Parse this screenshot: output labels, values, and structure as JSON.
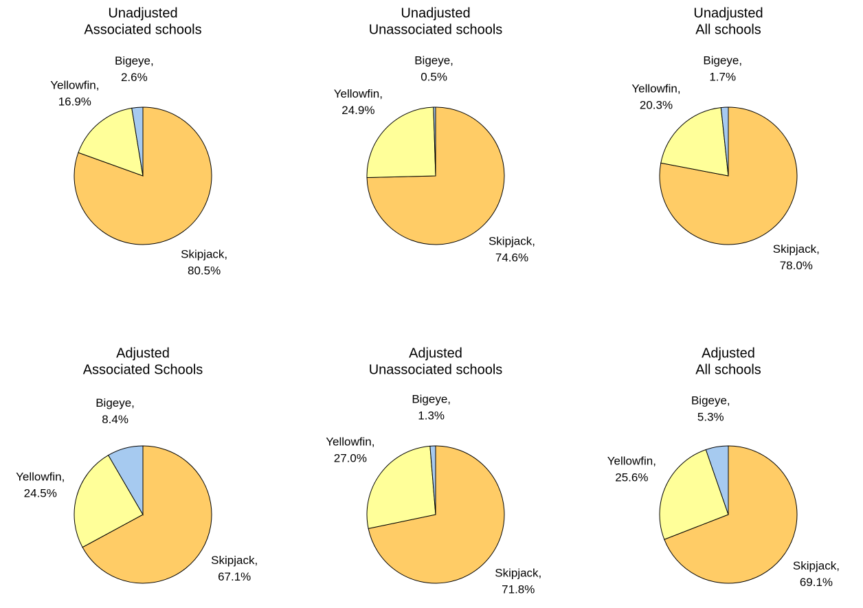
{
  "chart_data": [
    {
      "type": "pie",
      "title": [
        "Unadjusted",
        "Associated schools"
      ],
      "categories": [
        "Skipjack,",
        "Yellowfin,",
        "Bigeye,"
      ],
      "values": [
        80.5,
        16.9,
        2.6
      ],
      "value_labels": [
        "80.5%",
        "16.9%",
        "2.6%"
      ],
      "colors": [
        "#ffcc66",
        "#ffff99",
        "#a6caf0"
      ]
    },
    {
      "type": "pie",
      "title": [
        "Unadjusted",
        "Unassociated schools"
      ],
      "categories": [
        "Skipjack,",
        "Yellowfin,",
        "Bigeye,"
      ],
      "values": [
        74.6,
        24.9,
        0.5
      ],
      "value_labels": [
        "74.6%",
        "24.9%",
        "0.5%"
      ],
      "colors": [
        "#ffcc66",
        "#ffff99",
        "#a6caf0"
      ]
    },
    {
      "type": "pie",
      "title": [
        "Unadjusted",
        "All schools"
      ],
      "categories": [
        "Skipjack,",
        "Yellowfin,",
        "Bigeye,"
      ],
      "values": [
        78.0,
        20.3,
        1.7
      ],
      "value_labels": [
        "78.0%",
        "20.3%",
        "1.7%"
      ],
      "colors": [
        "#ffcc66",
        "#ffff99",
        "#a6caf0"
      ]
    },
    {
      "type": "pie",
      "title": [
        "Adjusted",
        "Associated Schools"
      ],
      "categories": [
        "Skipjack,",
        "Yellowfin,",
        "Bigeye,"
      ],
      "values": [
        67.1,
        24.5,
        8.4
      ],
      "value_labels": [
        "67.1%",
        "24.5%",
        "8.4%"
      ],
      "colors": [
        "#ffcc66",
        "#ffff99",
        "#a6caf0"
      ]
    },
    {
      "type": "pie",
      "title": [
        "Adjusted",
        "Unassociated schools"
      ],
      "categories": [
        "Skipjack,",
        "Yellowfin,",
        "Bigeye,"
      ],
      "values": [
        71.8,
        27.0,
        1.3
      ],
      "value_labels": [
        "71.8%",
        "27.0%",
        "1.3%"
      ],
      "colors": [
        "#ffcc66",
        "#ffff99",
        "#a6caf0"
      ]
    },
    {
      "type": "pie",
      "title": [
        "Adjusted",
        "All schools"
      ],
      "categories": [
        "Skipjack,",
        "Yellowfin,",
        "Bigeye,"
      ],
      "values": [
        69.1,
        25.6,
        5.3
      ],
      "value_labels": [
        "69.1%",
        "25.6%",
        "5.3%"
      ],
      "colors": [
        "#ffcc66",
        "#ffff99",
        "#a6caf0"
      ]
    }
  ]
}
